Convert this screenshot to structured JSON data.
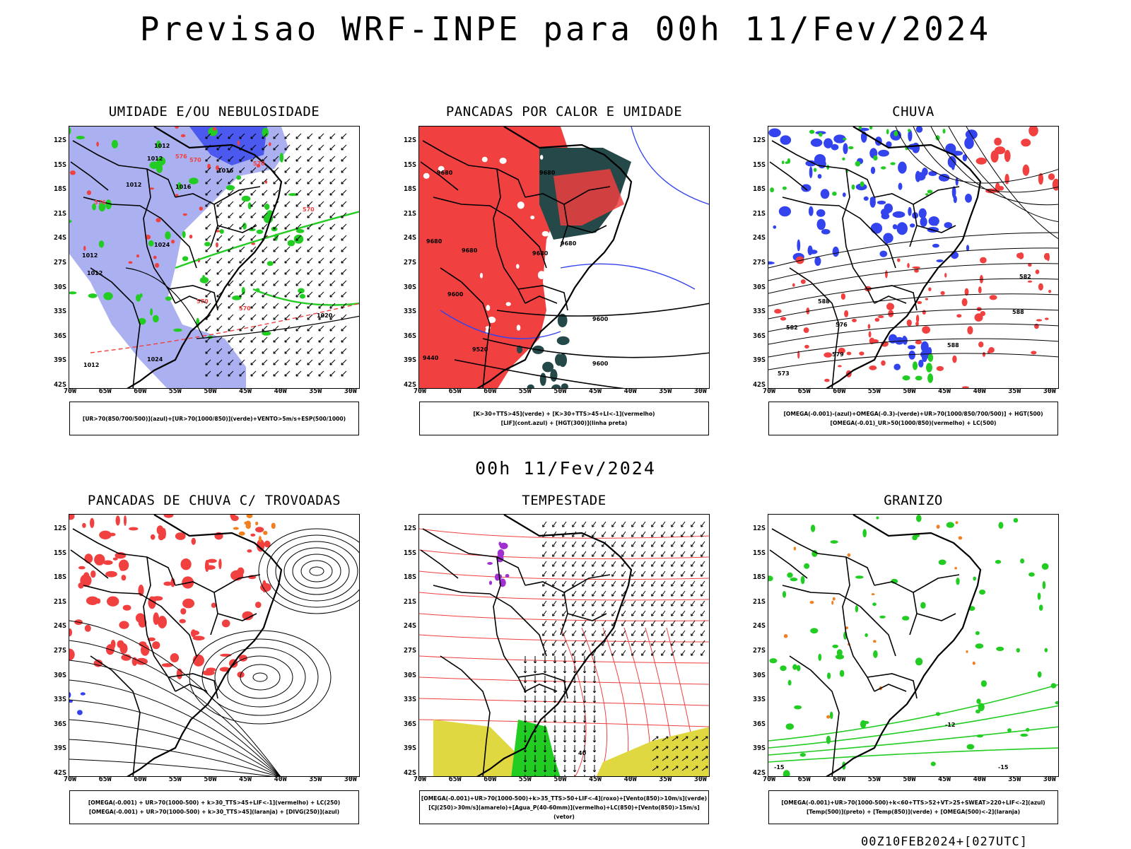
{
  "title": "Previsao WRF-INPE  para 00h 11/Fev/2024",
  "mid_date": "00h 11/Fev/2024",
  "run_stamp": "00Z10FEB2024+[027UTC]",
  "lat_labels": [
    "12S",
    "15S",
    "18S",
    "21S",
    "24S",
    "27S",
    "30S",
    "33S",
    "36S",
    "39S",
    "42S"
  ],
  "lon_labels": [
    "70W",
    "65W",
    "60W",
    "55W",
    "50W",
    "45W",
    "40W",
    "35W",
    "30W"
  ],
  "colors": {
    "blue": "#3344ee",
    "lightblue": "#aab0f0",
    "green": "#22cc22",
    "red": "#f04040",
    "darkteal": "#254848",
    "orange": "#f08020",
    "purple": "#a030d0",
    "yellow": "#e0d840"
  },
  "panels": [
    {
      "id": "umidade",
      "title": "UMIDADE E/OU NEBULOSIDADE",
      "legend": [
        "[UR>70(850/700/500)](azul)+[UR>70(1000/850)](verde)+VENTO>5m/s+ESP(500/1000)"
      ],
      "labels": [
        "1012",
        "1012",
        "1012",
        "1016",
        "1016",
        "1020",
        "1024",
        "1024",
        "1012",
        "1012",
        "1012",
        "570",
        "576",
        "576",
        "570",
        "570",
        "570",
        "570"
      ]
    },
    {
      "id": "pancadas-calor",
      "title": "PANCADAS POR CALOR E UMIDADE",
      "legend": [
        "[K>30+TTS>45](verde) + [K>30+TTS>45+LI<-1](vermelho)",
        "[LIF](cont.azul) + [HGT(300)](linha preta)"
      ],
      "labels": [
        "9680",
        "9680",
        "9680",
        "9680",
        "9680",
        "9600",
        "9600",
        "9680",
        "9600",
        "9520",
        "9440"
      ]
    },
    {
      "id": "chuva",
      "title": "CHUVA",
      "legend": [
        "[OMEGA(-0.001)-(azul)+OMEGA(-0.3)-(verde)+UR>70(1000/850/700/500)] + HGT(500)",
        "[OMEGA(-0.01)_UR>50(1000/850)(vermelho) + LC(500)"
      ],
      "labels": [
        "588",
        "582",
        "579",
        "576",
        "573",
        "588",
        "582",
        "588"
      ]
    },
    {
      "id": "pancadas-trovoadas",
      "title": "PANCADAS DE CHUVA C/ TROVOADAS",
      "legend": [
        "[OMEGA(-0.001) + UR>70(1000-500) + k>30_TTS>45+LIF<-1](vermelho) + LC(250)",
        "[OMEGA(-0.001) + UR>70(1000-500) + k>30_TTS>45](laranja) + [DIVG(250)](azul)"
      ],
      "labels": []
    },
    {
      "id": "tempestade",
      "title": "TEMPESTADE",
      "legend": [
        "[OMEGA(-0.001)+UR>70(1000-500)+k>35_TTS>50+LIF<-4](roxo)+[Vento(850)>10m/s](verde)",
        "[CJ(250)>30m/s](amarelo)+[Agua_P(40-60mm)](vermelho)+LC(850)+[Vento(850)>15m/s](vetor)"
      ],
      "labels": [
        "40"
      ]
    },
    {
      "id": "granizo",
      "title": "GRANIZO",
      "legend": [
        "[OMEGA(-0.001)+UR>70(1000-500)+k<60+TTS>52+VT>25+SWEAT>220+LIF<-2](azul)",
        "[Temp(500)](preto) + [Temp(850)](verde) + [OMEGA(500)<-2](laranja)"
      ],
      "labels": [
        "-15",
        "-12",
        "-15"
      ]
    }
  ]
}
